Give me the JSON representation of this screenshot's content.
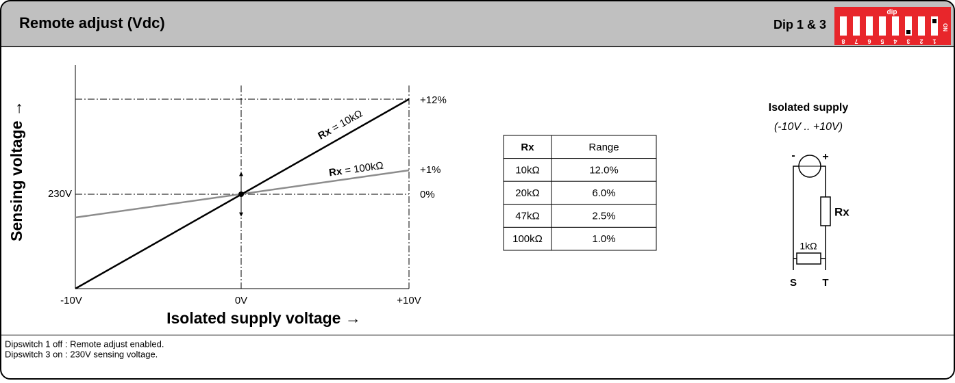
{
  "header": {
    "title": "Remote adjust  (Vdc)",
    "dip_label": "Dip 1 & 3"
  },
  "dip_switch": {
    "label": "dip",
    "numbers": [
      "8",
      "7",
      "6",
      "5",
      "4",
      "3",
      "2",
      "1"
    ],
    "on": "ON"
  },
  "graph": {
    "y_axis_label": "Sensing voltage →",
    "x_axis_label": "Isolated supply voltage →",
    "x_ticks": [
      "-10V",
      "0V",
      "+10V"
    ],
    "y_tick": "230V",
    "right_labels": [
      "+12%",
      "+1%",
      "0%"
    ],
    "lines": [
      {
        "name": "Rx",
        "value": "= 10kΩ"
      },
      {
        "name": "Rx",
        "value": "= 100kΩ"
      }
    ]
  },
  "table": {
    "header": [
      "Rx",
      "Range"
    ],
    "rows": [
      [
        "10kΩ",
        "12.0%"
      ],
      [
        "20kΩ",
        "6.0%"
      ],
      [
        "47kΩ",
        "2.5%"
      ],
      [
        "100kΩ",
        "1.0%"
      ]
    ]
  },
  "circuit": {
    "title": "Isolated supply",
    "subtitle": "(-10V .. +10V)",
    "minus": "-",
    "plus": "+",
    "rx": "Rx",
    "r1": "1kΩ",
    "s": "S",
    "t": "T"
  },
  "footer": {
    "lines": [
      "Dipswitch 1 off : Remote adjust enabled.",
      "Dipswitch 3 on : 230V sensing voltage."
    ]
  }
}
